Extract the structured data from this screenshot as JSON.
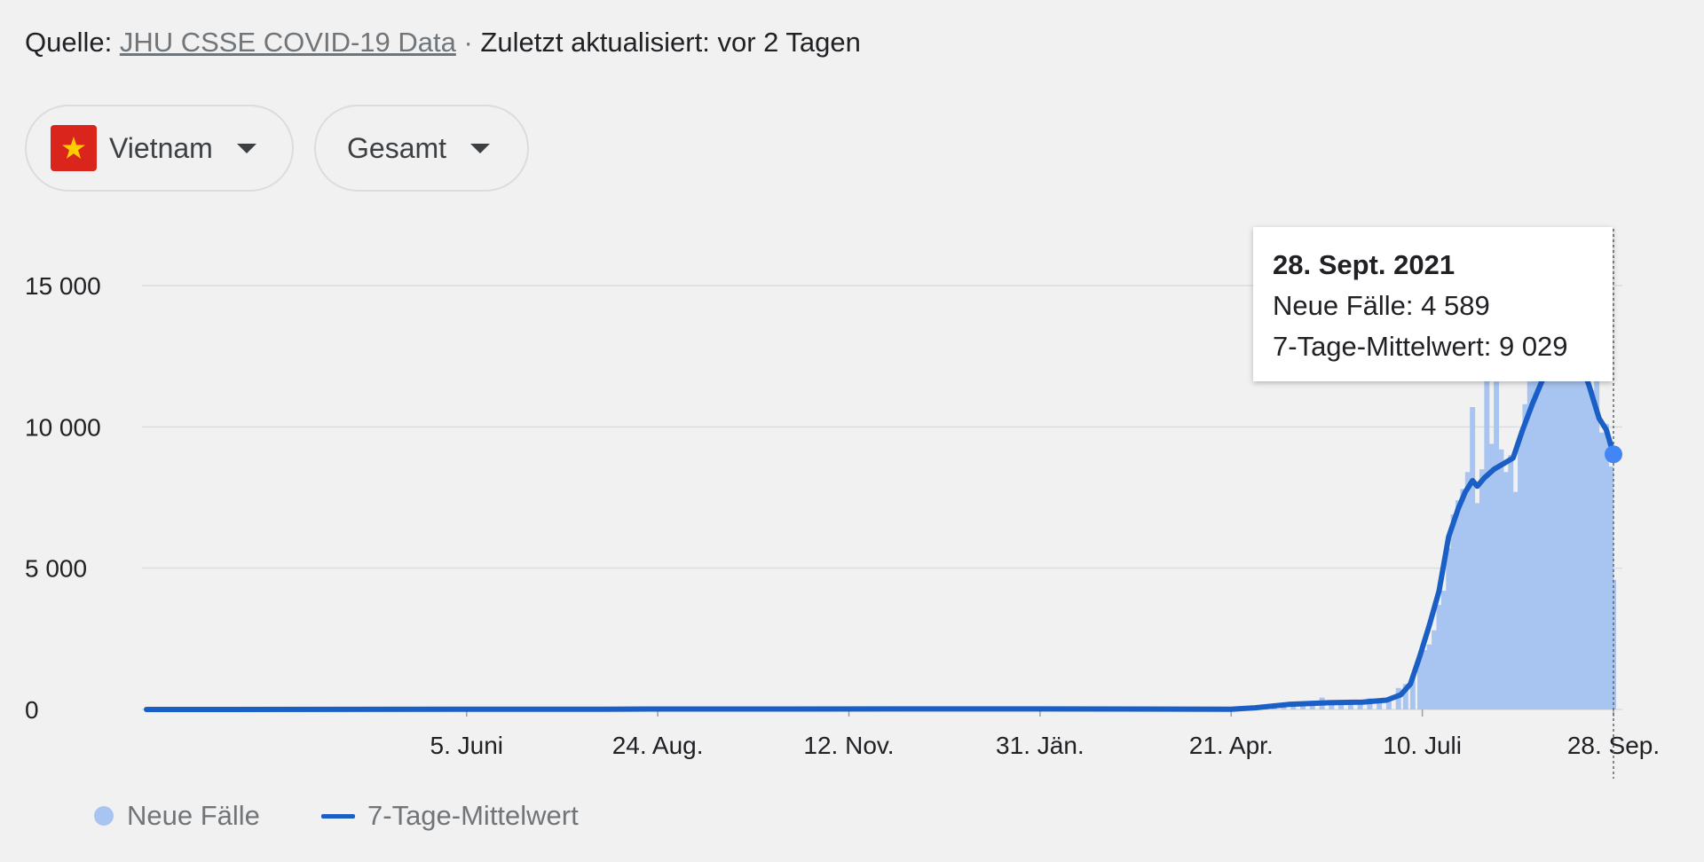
{
  "source": {
    "prefix": "Quelle:",
    "link_text": "JHU CSSE COVID-19 Data",
    "separator": " · ",
    "updated": "Zuletzt aktualisiert: vor 2 Tagen"
  },
  "filters": {
    "country": "Vietnam",
    "country_flag_icon": "vietnam-flag-icon",
    "mode": "Gesamt"
  },
  "colors": {
    "bars": "#a8c4f0",
    "line": "#1a5fc6",
    "marker": "#4285f4",
    "grid": "#dadce0"
  },
  "chart_data": {
    "type": "bar",
    "x_start": "2020-01-23",
    "x_end": "2021-09-28",
    "ylim": [
      0,
      15000
    ],
    "y_ticks": [
      {
        "value": 0,
        "label": "0"
      },
      {
        "value": 5000,
        "label": "5 000"
      },
      {
        "value": 10000,
        "label": "10 000"
      },
      {
        "value": 15000,
        "label": "15 000"
      }
    ],
    "x_ticks": [
      {
        "date": "2020-06-05",
        "label": "5. Juni"
      },
      {
        "date": "2020-08-24",
        "label": "24. Aug."
      },
      {
        "date": "2020-11-12",
        "label": "12. Nov."
      },
      {
        "date": "2021-01-31",
        "label": "31. Jän."
      },
      {
        "date": "2021-04-21",
        "label": "21. Apr."
      },
      {
        "date": "2021-07-10",
        "label": "10. Juli"
      },
      {
        "date": "2021-09-28",
        "label": "28. Sep."
      }
    ],
    "grid": true,
    "legend_position": "bottom-left",
    "series": [
      {
        "name": "Neue Fälle",
        "type": "bar",
        "points": [
          [
            "2021-04-21",
            5
          ],
          [
            "2021-04-28",
            10
          ],
          [
            "2021-05-01",
            45
          ],
          [
            "2021-05-05",
            80
          ],
          [
            "2021-05-09",
            150
          ],
          [
            "2021-05-13",
            200
          ],
          [
            "2021-05-17",
            250
          ],
          [
            "2021-05-21",
            190
          ],
          [
            "2021-05-25",
            310
          ],
          [
            "2021-05-29",
            420
          ],
          [
            "2021-06-02",
            200
          ],
          [
            "2021-06-06",
            300
          ],
          [
            "2021-06-10",
            260
          ],
          [
            "2021-06-14",
            230
          ],
          [
            "2021-06-18",
            400
          ],
          [
            "2021-06-22",
            350
          ],
          [
            "2021-06-26",
            420
          ],
          [
            "2021-06-30",
            760
          ],
          [
            "2021-07-03",
            900
          ],
          [
            "2021-07-06",
            1200
          ],
          [
            "2021-07-09",
            1900
          ],
          [
            "2021-07-11",
            2100
          ],
          [
            "2021-07-13",
            2300
          ],
          [
            "2021-07-15",
            2800
          ],
          [
            "2021-07-17",
            3700
          ],
          [
            "2021-07-19",
            4200
          ],
          [
            "2021-07-21",
            5700
          ],
          [
            "2021-07-23",
            6900
          ],
          [
            "2021-07-25",
            7400
          ],
          [
            "2021-07-27",
            7800
          ],
          [
            "2021-07-29",
            8400
          ],
          [
            "2021-07-31",
            10700
          ],
          [
            "2021-08-02",
            7300
          ],
          [
            "2021-08-04",
            8500
          ],
          [
            "2021-08-06",
            11800
          ],
          [
            "2021-08-08",
            9400
          ],
          [
            "2021-08-10",
            11600
          ],
          [
            "2021-08-12",
            9200
          ],
          [
            "2021-08-14",
            8400
          ],
          [
            "2021-08-16",
            9000
          ],
          [
            "2021-08-18",
            7700
          ],
          [
            "2021-08-20",
            9700
          ],
          [
            "2021-08-22",
            10800
          ],
          [
            "2021-08-24",
            11600
          ],
          [
            "2021-08-26",
            12300
          ],
          [
            "2021-08-28",
            13000
          ],
          [
            "2021-08-30",
            13500
          ],
          [
            "2021-09-01",
            14200
          ],
          [
            "2021-09-03",
            13600
          ],
          [
            "2021-09-05",
            13700
          ],
          [
            "2021-09-07",
            12300
          ],
          [
            "2021-09-09",
            13000
          ],
          [
            "2021-09-11",
            12400
          ],
          [
            "2021-09-13",
            12800
          ],
          [
            "2021-09-15",
            11800
          ],
          [
            "2021-09-17",
            11600
          ],
          [
            "2021-09-19",
            11300
          ],
          [
            "2021-09-21",
            12000
          ],
          [
            "2021-09-23",
            9800
          ],
          [
            "2021-09-25",
            10100
          ],
          [
            "2021-09-27",
            8600
          ],
          [
            "2021-09-28",
            4589
          ]
        ]
      },
      {
        "name": "7-Tage-Mittelwert",
        "type": "line",
        "points": [
          [
            "2020-01-23",
            0
          ],
          [
            "2020-08-01",
            10
          ],
          [
            "2020-08-20",
            15
          ],
          [
            "2021-01-30",
            20
          ],
          [
            "2021-04-21",
            10
          ],
          [
            "2021-05-01",
            60
          ],
          [
            "2021-05-15",
            180
          ],
          [
            "2021-06-01",
            240
          ],
          [
            "2021-06-15",
            260
          ],
          [
            "2021-06-25",
            330
          ],
          [
            "2021-07-01",
            520
          ],
          [
            "2021-07-05",
            900
          ],
          [
            "2021-07-09",
            1900
          ],
          [
            "2021-07-13",
            3000
          ],
          [
            "2021-07-17",
            4200
          ],
          [
            "2021-07-21",
            6100
          ],
          [
            "2021-07-25",
            7100
          ],
          [
            "2021-07-28",
            7700
          ],
          [
            "2021-07-31",
            8100
          ],
          [
            "2021-08-02",
            7900
          ],
          [
            "2021-08-05",
            8200
          ],
          [
            "2021-08-09",
            8500
          ],
          [
            "2021-08-13",
            8700
          ],
          [
            "2021-08-17",
            8900
          ],
          [
            "2021-08-21",
            9900
          ],
          [
            "2021-08-25",
            10800
          ],
          [
            "2021-08-29",
            11600
          ],
          [
            "2021-09-02",
            12200
          ],
          [
            "2021-09-06",
            12600
          ],
          [
            "2021-09-10",
            12700
          ],
          [
            "2021-09-14",
            12400
          ],
          [
            "2021-09-18",
            11400
          ],
          [
            "2021-09-22",
            10300
          ],
          [
            "2021-09-25",
            9900
          ],
          [
            "2021-09-28",
            9029
          ]
        ]
      }
    ],
    "tooltip": {
      "date_label": "28. Sept. 2021",
      "cases_text": "Neue Fälle: 4 589",
      "avg_text": "7-Tage-Mittelwert: 9 029",
      "date": "2021-09-28",
      "avg_value": 9029
    }
  }
}
